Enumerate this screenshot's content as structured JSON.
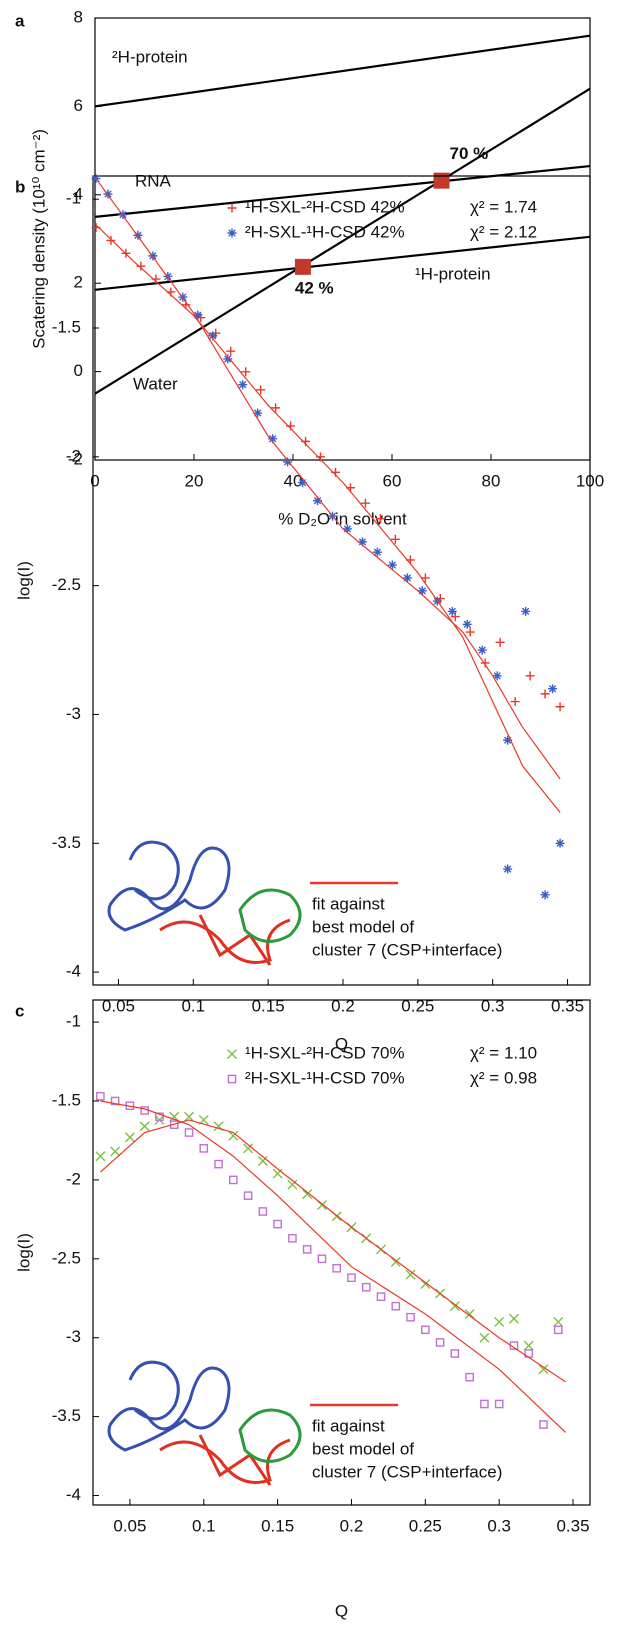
{
  "chart_data": [
    {
      "type": "line",
      "panel": "a",
      "xlabel": "% D₂O in solvent",
      "ylabel": "Scatering density (10¹⁰ cm⁻²)",
      "xlim": [
        0,
        100
      ],
      "ylim": [
        -2,
        8
      ],
      "xticks": [
        0,
        20,
        40,
        60,
        80,
        100
      ],
      "yticks": [
        -2,
        0,
        2,
        4,
        6,
        8
      ],
      "x": [
        0,
        100
      ],
      "series": [
        {
          "name": "²H-protein",
          "color": "#000000",
          "values": [
            6.0,
            7.6
          ]
        },
        {
          "name": "RNA",
          "color": "#000000",
          "values": [
            3.5,
            4.65
          ]
        },
        {
          "name": "¹H-protein",
          "color": "#000000",
          "values": [
            1.85,
            3.05
          ]
        },
        {
          "name": "Water",
          "color": "#000000",
          "values": [
            -0.5,
            6.4
          ]
        }
      ],
      "points": {
        "color": "#c0392b",
        "x": [
          42,
          70
        ],
        "values": [
          2.37,
          4.32
        ],
        "value_labels": [
          "42 %",
          "70 %"
        ]
      }
    },
    {
      "type": "scatter",
      "panel": "b",
      "xlabel": "Q",
      "ylabel": "log(I)",
      "xlim": [
        0.033,
        0.365
      ],
      "ylim": [
        -4.05,
        -0.91
      ],
      "xticks": [
        0.05,
        0.1,
        0.15,
        0.2,
        0.25,
        0.3,
        0.35
      ],
      "yticks": [
        -1,
        -1.5,
        -2,
        -2.5,
        -3,
        -3.5,
        -4
      ],
      "series": [
        {
          "name": "¹H-SXL-²H-CSD 42%",
          "chi2": "χ² = 1.74",
          "marker": "plus",
          "color": "#e8382a",
          "x": [
            0.035,
            0.045,
            0.055,
            0.065,
            0.075,
            0.085,
            0.095,
            0.105,
            0.115,
            0.125,
            0.135,
            0.145,
            0.155,
            0.165,
            0.175,
            0.185,
            0.195,
            0.205,
            0.215,
            0.225,
            0.235,
            0.245,
            0.255,
            0.265,
            0.275,
            0.285,
            0.295,
            0.305,
            0.315,
            0.325,
            0.335,
            0.345
          ],
          "values": [
            -1.11,
            -1.16,
            -1.21,
            -1.26,
            -1.31,
            -1.36,
            -1.41,
            -1.46,
            -1.52,
            -1.59,
            -1.67,
            -1.74,
            -1.81,
            -1.88,
            -1.94,
            -2.0,
            -2.06,
            -2.12,
            -2.18,
            -2.24,
            -2.32,
            -2.4,
            -2.47,
            -2.55,
            -2.62,
            -2.68,
            -2.8,
            -2.72,
            -2.95,
            -2.85,
            -2.92,
            -2.97
          ]
        },
        {
          "name": "²H-SXL-¹H-CSD 42%",
          "chi2": "χ² = 2.12",
          "marker": "star",
          "color": "#3a5fc8",
          "x": [
            0.035,
            0.043,
            0.053,
            0.063,
            0.073,
            0.083,
            0.093,
            0.103,
            0.113,
            0.123,
            0.133,
            0.143,
            0.153,
            0.163,
            0.173,
            0.183,
            0.193,
            0.203,
            0.213,
            0.223,
            0.233,
            0.243,
            0.253,
            0.263,
            0.273,
            0.283,
            0.293,
            0.303,
            0.31,
            0.31,
            0.322,
            0.335,
            0.34,
            0.345
          ],
          "values": [
            -0.92,
            -0.98,
            -1.06,
            -1.14,
            -1.22,
            -1.3,
            -1.38,
            -1.45,
            -1.53,
            -1.62,
            -1.72,
            -1.83,
            -1.93,
            -2.02,
            -2.1,
            -2.17,
            -2.23,
            -2.28,
            -2.33,
            -2.37,
            -2.42,
            -2.47,
            -2.52,
            -2.56,
            -2.6,
            -2.65,
            -2.75,
            -2.85,
            -3.1,
            -3.6,
            -2.6,
            -3.7,
            -2.9,
            -3.5
          ]
        },
        {
          "marker": "line",
          "color": "#e8382a",
          "x": [
            0.035,
            0.06,
            0.1,
            0.15,
            0.2,
            0.25,
            0.28,
            0.3,
            0.32,
            0.345
          ],
          "values": [
            -0.92,
            -1.12,
            -1.44,
            -1.92,
            -2.28,
            -2.52,
            -2.68,
            -2.85,
            -3.05,
            -3.25
          ]
        },
        {
          "marker": "line",
          "color": "#e8382a",
          "x": [
            0.035,
            0.06,
            0.1,
            0.15,
            0.2,
            0.25,
            0.28,
            0.3,
            0.32,
            0.345
          ],
          "values": [
            -1.1,
            -1.24,
            -1.45,
            -1.8,
            -2.1,
            -2.45,
            -2.7,
            -2.95,
            -3.2,
            -3.38
          ]
        }
      ],
      "annotation": [
        "fit against",
        "best model of",
        "cluster 7 (CSP+interface)"
      ]
    },
    {
      "type": "scatter",
      "panel": "c",
      "xlabel": "Q",
      "ylabel": "log(I)",
      "xlim": [
        0.025,
        0.3615
      ],
      "ylim": [
        -4.06,
        -0.86
      ],
      "xticks": [
        0.05,
        0.1,
        0.15,
        0.2,
        0.25,
        0.3,
        0.35
      ],
      "yticks": [
        -1,
        -1.5,
        -2,
        -2.5,
        -3,
        -3.5,
        -4
      ],
      "series": [
        {
          "name": "¹H-SXL-²H-CSD 70%",
          "chi2": "χ² = 1.10",
          "marker": "x",
          "color": "#7cc040",
          "x": [
            0.03,
            0.04,
            0.05,
            0.06,
            0.07,
            0.08,
            0.09,
            0.1,
            0.11,
            0.12,
            0.13,
            0.14,
            0.15,
            0.16,
            0.17,
            0.18,
            0.19,
            0.2,
            0.21,
            0.22,
            0.23,
            0.24,
            0.25,
            0.26,
            0.27,
            0.28,
            0.29,
            0.3,
            0.31,
            0.32,
            0.33,
            0.34
          ],
          "values": [
            -1.85,
            -1.82,
            -1.73,
            -1.66,
            -1.62,
            -1.6,
            -1.6,
            -1.62,
            -1.66,
            -1.72,
            -1.8,
            -1.88,
            -1.96,
            -2.03,
            -2.09,
            -2.16,
            -2.23,
            -2.3,
            -2.37,
            -2.44,
            -2.52,
            -2.6,
            -2.66,
            -2.72,
            -2.8,
            -2.85,
            -3.0,
            -2.9,
            -2.88,
            -3.05,
            -3.2,
            -2.9
          ]
        },
        {
          "name": "²H-SXL-¹H-CSD 70%",
          "chi2": "χ² = 0.98",
          "marker": "square",
          "color": "#c070d0",
          "x": [
            0.03,
            0.04,
            0.05,
            0.06,
            0.07,
            0.08,
            0.09,
            0.1,
            0.11,
            0.12,
            0.13,
            0.14,
            0.15,
            0.16,
            0.17,
            0.18,
            0.19,
            0.2,
            0.21,
            0.22,
            0.23,
            0.24,
            0.25,
            0.26,
            0.27,
            0.28,
            0.29,
            0.3,
            0.31,
            0.32,
            0.33,
            0.34
          ],
          "values": [
            -1.47,
            -1.5,
            -1.53,
            -1.56,
            -1.6,
            -1.65,
            -1.7,
            -1.8,
            -1.9,
            -2.0,
            -2.1,
            -2.2,
            -2.28,
            -2.37,
            -2.44,
            -2.5,
            -2.56,
            -2.62,
            -2.68,
            -2.74,
            -2.8,
            -2.87,
            -2.95,
            -3.03,
            -3.1,
            -3.25,
            -3.42,
            -3.42,
            -3.05,
            -3.1,
            -3.55,
            -2.95
          ]
        },
        {
          "marker": "line",
          "color": "#e8382a",
          "x": [
            0.03,
            0.06,
            0.09,
            0.12,
            0.15,
            0.2,
            0.25,
            0.3,
            0.345
          ],
          "values": [
            -1.95,
            -1.7,
            -1.62,
            -1.7,
            -1.93,
            -2.3,
            -2.65,
            -3.0,
            -3.28
          ]
        },
        {
          "marker": "line",
          "color": "#e8382a",
          "x": [
            0.03,
            0.06,
            0.09,
            0.12,
            0.15,
            0.2,
            0.25,
            0.3,
            0.345
          ],
          "values": [
            -1.5,
            -1.55,
            -1.65,
            -1.85,
            -2.1,
            -2.55,
            -2.85,
            -3.2,
            -3.6
          ]
        }
      ],
      "annotation": [
        "fit against",
        "best model of",
        "cluster 7 (CSP+interface)"
      ]
    }
  ]
}
